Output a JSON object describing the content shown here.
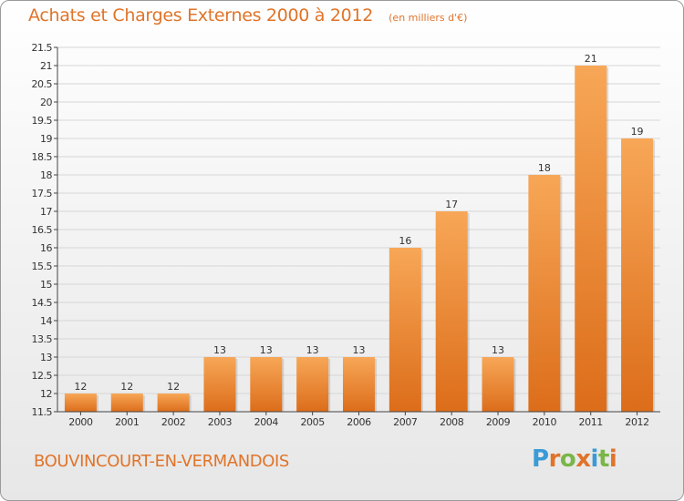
{
  "header": {
    "title": "Achats et Charges Externes 2000 à 2012",
    "unit": "(en milliers d'€)"
  },
  "footer": {
    "commune": "BOUVINCOURT-EN-VERMANDOIS",
    "logo_text": "Proxiti",
    "logo_colors": [
      "#3a9bd6",
      "#e0742a",
      "#7ab648",
      "#e0742a",
      "#3a9bd6",
      "#7ab648",
      "#e0742a"
    ]
  },
  "colors": {
    "bar_light": "#f7a757",
    "bar_dark": "#dc6d1a",
    "text_accent": "#e0742a",
    "grid": "#d6d6d6",
    "axis": "#444444"
  },
  "chart_data": {
    "type": "bar",
    "title": "Achats et Charges Externes 2000 à 2012",
    "subtitle": "(en milliers d'€)",
    "xlabel": "",
    "ylabel": "",
    "categories": [
      "2000",
      "2001",
      "2002",
      "2003",
      "2004",
      "2005",
      "2006",
      "2007",
      "2008",
      "2009",
      "2010",
      "2011",
      "2012"
    ],
    "values": [
      12,
      12,
      12,
      13,
      13,
      13,
      13,
      16,
      17,
      13,
      18,
      21,
      19
    ],
    "data_labels": [
      "12",
      "12",
      "12",
      "13",
      "13",
      "13",
      "13",
      "16",
      "17",
      "13",
      "18",
      "21",
      "19"
    ],
    "ylim": [
      11.5,
      21.5
    ],
    "yticks": [
      "11.5",
      "12",
      "12.5",
      "13",
      "13.5",
      "14",
      "14.5",
      "15",
      "15.5",
      "16",
      "16.5",
      "17",
      "17.5",
      "18",
      "18.5",
      "19",
      "19.5",
      "20",
      "20.5",
      "21",
      "21.5"
    ],
    "grid": true,
    "legend": "none"
  }
}
